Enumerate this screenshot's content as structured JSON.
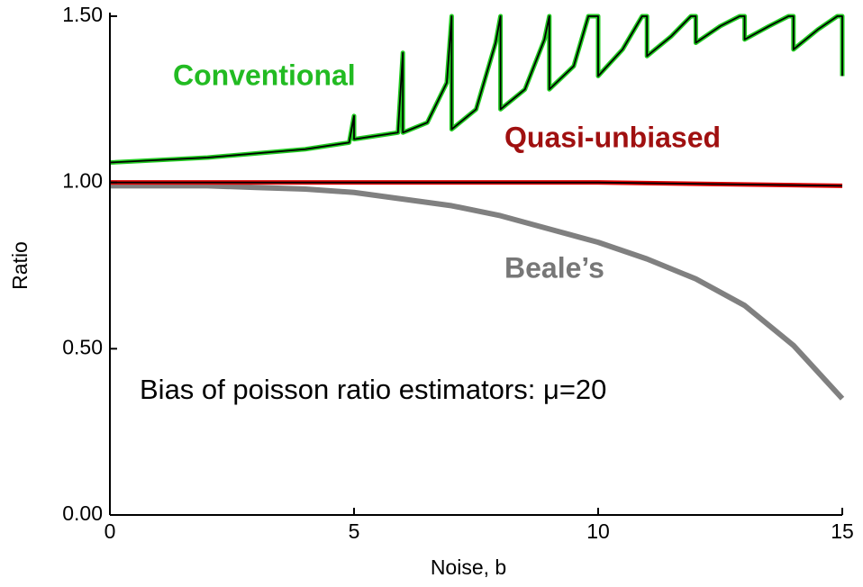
{
  "chart_data": {
    "type": "line",
    "xlabel": "Noise, b",
    "ylabel": "Ratio",
    "xlim": [
      0,
      15
    ],
    "ylim": [
      0,
      1.5
    ],
    "xticks": [
      0,
      5,
      10,
      15
    ],
    "yticks": [
      {
        "value": 0,
        "label": "0.00"
      },
      {
        "value": 0.5,
        "label": "0.50"
      },
      {
        "value": 1,
        "label": "1.00"
      },
      {
        "value": 1.5,
        "label": "1.50"
      }
    ],
    "annotations": [
      "Conventional",
      "Quasi-unbiased",
      "Beale’s",
      "Bias of poisson ratio estimators: μ=20"
    ],
    "series": [
      {
        "name": "Beale’s",
        "color": "#808080",
        "x": [
          0,
          1,
          2,
          3,
          4,
          5,
          6,
          7,
          8,
          9,
          10,
          11,
          12,
          13,
          14,
          15
        ],
        "values": [
          0.99,
          0.99,
          0.99,
          0.985,
          0.98,
          0.97,
          0.95,
          0.93,
          0.9,
          0.86,
          0.82,
          0.77,
          0.71,
          0.63,
          0.51,
          0.35
        ]
      },
      {
        "name": "Quasi-unbiased",
        "color": "#e00000",
        "x": [
          0,
          5,
          10,
          15
        ],
        "values": [
          1.0,
          1.0,
          1.0,
          0.99
        ]
      },
      {
        "name": "Conventional",
        "color": "#22cc22",
        "x": [
          0,
          2,
          4,
          4.9,
          5,
          5,
          5.9,
          6,
          6,
          6.5,
          6.9,
          7,
          7,
          7.5,
          7.9,
          8,
          8,
          8.5,
          8.9,
          9,
          9,
          9.5,
          9.8,
          10,
          10,
          10.5,
          10.9,
          11,
          11,
          11.5,
          11.9,
          12,
          12,
          12.5,
          12.9,
          13,
          13,
          13.5,
          13.9,
          14,
          14,
          14.5,
          14.9,
          15,
          15
        ],
        "values": [
          1.06,
          1.075,
          1.1,
          1.12,
          1.2,
          1.13,
          1.15,
          1.39,
          1.15,
          1.18,
          1.3,
          1.5,
          1.16,
          1.22,
          1.42,
          1.5,
          1.22,
          1.28,
          1.43,
          1.5,
          1.28,
          1.35,
          1.5,
          1.5,
          1.32,
          1.4,
          1.5,
          1.5,
          1.38,
          1.44,
          1.5,
          1.5,
          1.42,
          1.47,
          1.5,
          1.5,
          1.43,
          1.47,
          1.5,
          1.5,
          1.4,
          1.46,
          1.5,
          1.5,
          1.32
        ]
      }
    ]
  }
}
